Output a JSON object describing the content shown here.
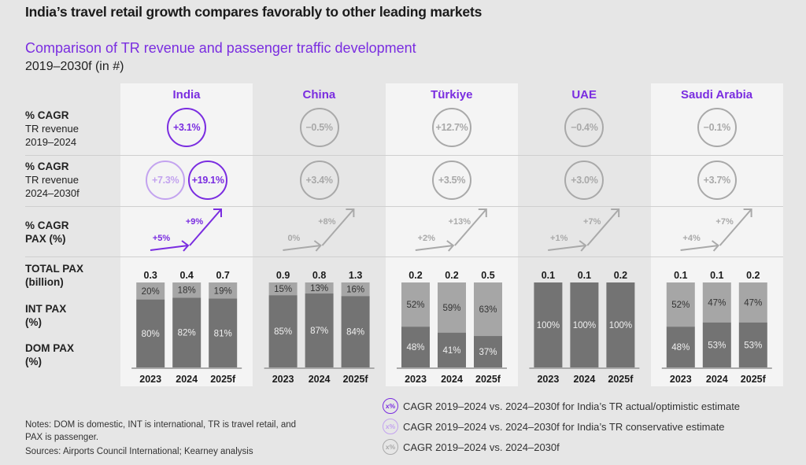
{
  "header": {
    "title": "India’s travel retail growth compares favorably to other leading markets",
    "subtitle": "Comparison of TR revenue and passenger traffic development",
    "subtitle2": "2019–2030f (in #)"
  },
  "row_labels": {
    "cagr_2019_bold": "% CAGR",
    "cagr_2019_l2": "TR revenue",
    "cagr_2019_l3": "2019–2024",
    "cagr_2024_bold": "% CAGR",
    "cagr_2024_l2": "TR revenue",
    "cagr_2024_l3": "2024–2030f",
    "pax_bold": "% CAGR",
    "pax_l2": "PAX (%)",
    "total_l1": "TOTAL PAX",
    "total_l2": "(billion)",
    "int_l1": "INT PAX",
    "int_l2": "(%)",
    "dom_l1": "DOM PAX",
    "dom_l2": "(%)"
  },
  "colors": {
    "accent": "#7a2de0",
    "accent_light": "#c3a3ef",
    "neutral": "#a9a9a9",
    "bar_dark": "#737373",
    "bar_light": "#a6a6a6"
  },
  "chart_data": {
    "type": "bar",
    "title": "Comparison of TR revenue and passenger traffic development",
    "subtitle": "2019–2030f (in #)",
    "categories": [
      "2023",
      "2024",
      "2025f"
    ],
    "stacked": true,
    "ylim": [
      0,
      100
    ],
    "countries": [
      {
        "name": "India",
        "cagr_tr_2019_2024": "+3.1%",
        "cagr_tr_2024_2030f": [
          "+7.3%",
          "+19.1%"
        ],
        "cagr_tr_2024_2030f_styles": [
          "conservative",
          "actual"
        ],
        "style": "actual",
        "pax_cagr_2019_2024": "+5%",
        "pax_cagr_2024_2030f": "+9%",
        "total_pax_billion": [
          "0.3",
          "0.4",
          "0.7"
        ],
        "int_pax_pct": [
          20,
          18,
          19
        ],
        "dom_pax_pct": [
          80,
          82,
          81
        ]
      },
      {
        "name": "China",
        "cagr_tr_2019_2024": "−0.5%",
        "cagr_tr_2024_2030f": [
          "+3.4%"
        ],
        "cagr_tr_2024_2030f_styles": [
          "neutral"
        ],
        "style": "neutral",
        "pax_cagr_2019_2024": "0%",
        "pax_cagr_2024_2030f": "+8%",
        "total_pax_billion": [
          "0.9",
          "0.8",
          "1.3"
        ],
        "int_pax_pct": [
          15,
          13,
          16
        ],
        "dom_pax_pct": [
          85,
          87,
          84
        ]
      },
      {
        "name": "Türkiye",
        "cagr_tr_2019_2024": "+12.7%",
        "cagr_tr_2024_2030f": [
          "+3.5%"
        ],
        "cagr_tr_2024_2030f_styles": [
          "neutral"
        ],
        "style": "neutral",
        "pax_cagr_2019_2024": "+2%",
        "pax_cagr_2024_2030f": "+13%",
        "total_pax_billion": [
          "0.2",
          "0.2",
          "0.5"
        ],
        "int_pax_pct": [
          52,
          59,
          63
        ],
        "dom_pax_pct": [
          48,
          41,
          37
        ]
      },
      {
        "name": "UAE",
        "cagr_tr_2019_2024": "−0.4%",
        "cagr_tr_2024_2030f": [
          "+3.0%"
        ],
        "cagr_tr_2024_2030f_styles": [
          "neutral"
        ],
        "style": "neutral",
        "pax_cagr_2019_2024": "+1%",
        "pax_cagr_2024_2030f": "+7%",
        "total_pax_billion": [
          "0.1",
          "0.1",
          "0.2"
        ],
        "int_pax_pct": [
          100,
          100,
          100
        ],
        "dom_pax_pct": [
          0,
          0,
          0
        ],
        "single_segment_label": [
          "100%",
          "100%",
          "100%"
        ]
      },
      {
        "name": "Saudi Arabia",
        "cagr_tr_2019_2024": "−0.1%",
        "cagr_tr_2024_2030f": [
          "+3.7%"
        ],
        "cagr_tr_2024_2030f_styles": [
          "neutral"
        ],
        "style": "neutral",
        "pax_cagr_2019_2024": "+4%",
        "pax_cagr_2024_2030f": "+7%",
        "total_pax_billion": [
          "0.1",
          "0.1",
          "0.2"
        ],
        "int_pax_pct": [
          52,
          47,
          47
        ],
        "dom_pax_pct": [
          48,
          53,
          53
        ]
      }
    ],
    "legend": [
      {
        "swatch": "x%",
        "style": "actual",
        "label": "CAGR 2019–2024 vs. 2024–2030f for India’s TR actual/optimistic estimate"
      },
      {
        "swatch": "x%",
        "style": "conservative",
        "label": "CAGR 2019–2024 vs. 2024–2030f for India’s TR conservative estimate"
      },
      {
        "swatch": "x%",
        "style": "neutral",
        "label": "CAGR 2019–2024 vs. 2024–2030f"
      }
    ],
    "legend_position": "bottom-right"
  },
  "footer": {
    "notes": "Notes: DOM is domestic, INT is international, TR is travel retail, and PAX is passenger.",
    "sources": "Sources: Airports Council International; Kearney analysis"
  }
}
